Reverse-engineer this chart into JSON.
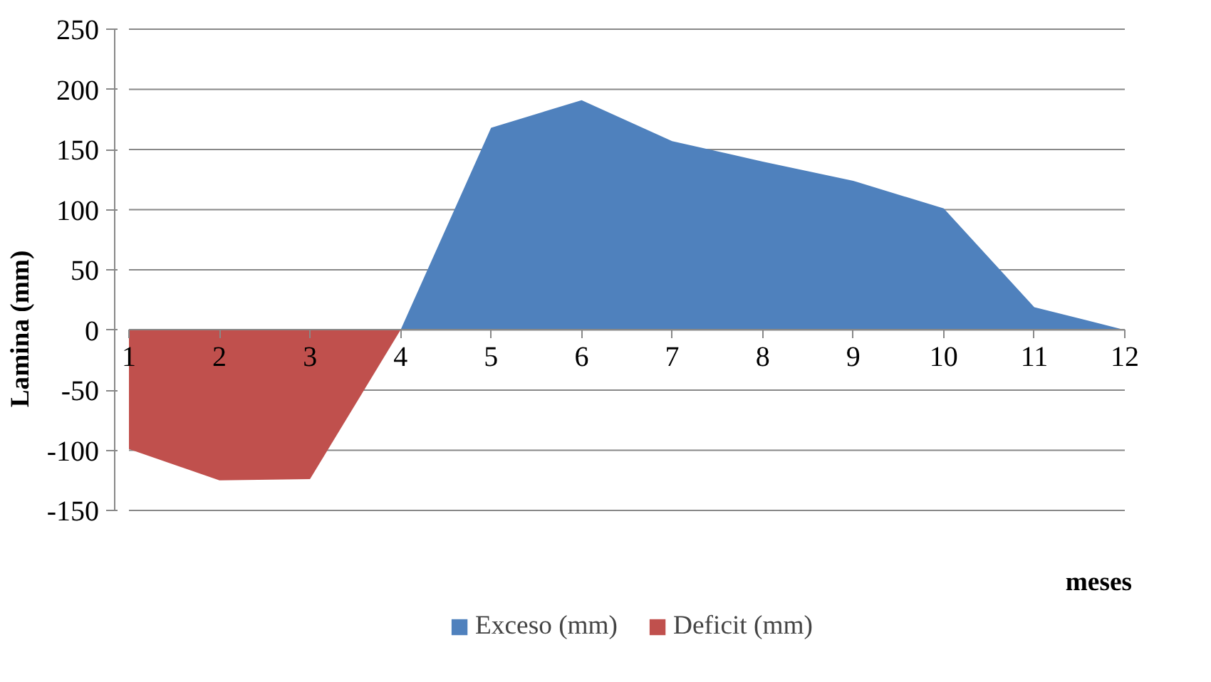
{
  "chart_data": {
    "type": "area",
    "xlabel": "meses",
    "ylabel": "Lamina (mm)",
    "x": [
      1,
      2,
      3,
      4,
      5,
      6,
      7,
      8,
      9,
      10,
      11,
      12
    ],
    "series": [
      {
        "name": "Exceso (mm)",
        "color": "#4f81bd",
        "values": [
          null,
          null,
          null,
          0,
          168,
          191,
          157,
          140,
          124,
          101,
          19,
          0
        ]
      },
      {
        "name": "Deficit (mm)",
        "color": "#c0504d",
        "values": [
          -99,
          -125,
          -124,
          0,
          null,
          null,
          null,
          null,
          null,
          null,
          null,
          null
        ]
      }
    ],
    "xlim": [
      1,
      12
    ],
    "xticks": [
      1,
      2,
      3,
      4,
      5,
      6,
      7,
      8,
      9,
      10,
      11,
      12
    ],
    "ylim": [
      -150,
      250
    ],
    "yticks": [
      -150,
      -100,
      -50,
      0,
      50,
      100,
      150,
      200,
      250
    ],
    "grid": "y",
    "legend": "bottom"
  }
}
